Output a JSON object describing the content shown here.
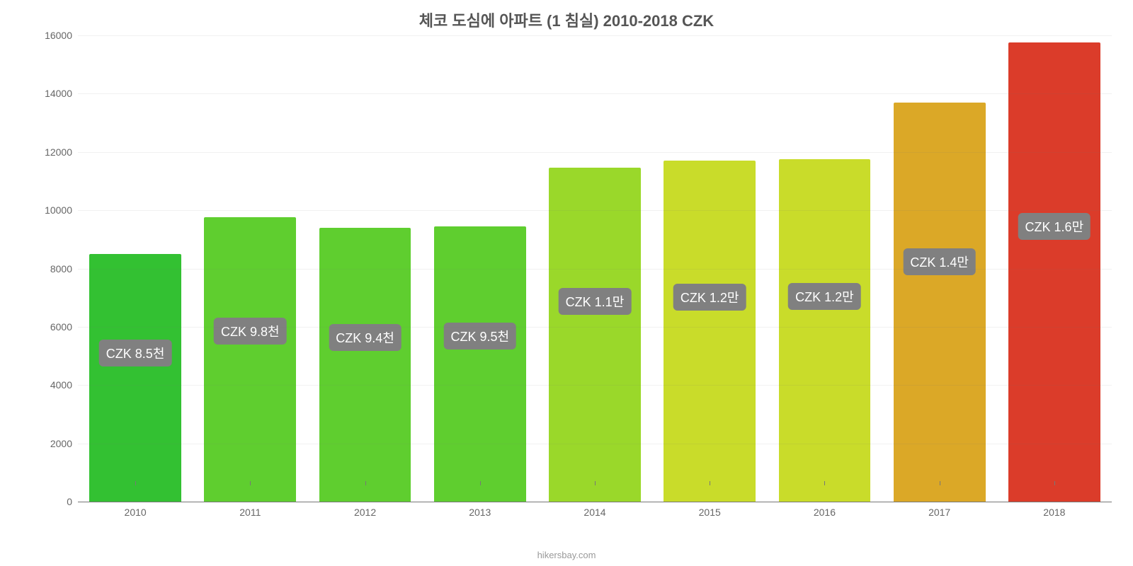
{
  "chart": {
    "type": "bar",
    "title": "체코 도심에 아파트 (1 침실) 2010-2018 CZK",
    "title_fontsize": 22,
    "title_color": "#555555",
    "background_color": "#ffffff",
    "ylim": [
      0,
      16000
    ],
    "yticks": [
      0,
      2000,
      4000,
      6000,
      8000,
      10000,
      12000,
      14000,
      16000
    ],
    "grid_color": "#777777",
    "grid_opacity": 0.1,
    "axis_color": "#777777",
    "tick_label_color": "#666666",
    "tick_label_fontsize": 14,
    "bar_width_pct": 80,
    "value_badge_bg": "#808080",
    "value_badge_color": "#ffffff",
    "value_badge_fontsize": 18,
    "categories": [
      "2010",
      "2011",
      "2012",
      "2013",
      "2014",
      "2015",
      "2016",
      "2017",
      "2018"
    ],
    "values": [
      8500,
      9750,
      9400,
      9450,
      11450,
      11700,
      11750,
      13700,
      15750
    ],
    "value_labels": [
      "CZK 8.5천",
      "CZK 9.8천",
      "CZK 9.4천",
      "CZK 9.5천",
      "CZK 1.1만",
      "CZK 1.2만",
      "CZK 1.2만",
      "CZK 1.4만",
      "CZK 1.6만"
    ],
    "bar_colors": [
      "#33c132",
      "#5fce2f",
      "#5fce2f",
      "#5fce2f",
      "#9ad82a",
      "#c9dc2a",
      "#c9dc2a",
      "#dba827",
      "#db3c2a"
    ],
    "footer": "hikersbay.com",
    "footer_color": "#999999",
    "footer_fontsize": 13
  }
}
